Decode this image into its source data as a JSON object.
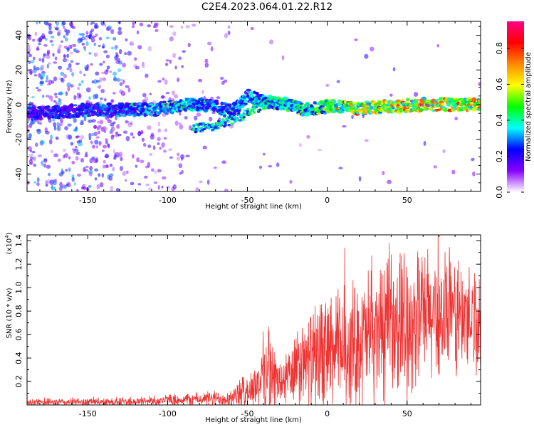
{
  "title": "C2E4.2023.064.01.22.R12",
  "chart_data": [
    {
      "type": "heatmap",
      "xlabel": "Height of straight line (km)",
      "ylabel": "Frequency (Hz)",
      "xlim": [
        -188,
        96
      ],
      "ylim": [
        -50,
        48
      ],
      "xticks": [
        -150,
        -100,
        -50,
        0,
        50
      ],
      "yticks": [
        -40,
        -20,
        0,
        20,
        40
      ],
      "colorbar": {
        "label": "Normalized spectral amplitude",
        "range": [
          0,
          0.95
        ],
        "ticks": [
          "0.0",
          "0.2",
          "0.4",
          "0.6",
          "0.8"
        ],
        "tick_values": [
          0,
          0.2,
          0.4,
          0.6,
          0.8
        ],
        "colors": [
          "#ffffff",
          "#8800ff",
          "#0000ff",
          "#00ffff",
          "#00ff00",
          "#ffff00",
          "#ff8800",
          "#ff0000",
          "#ff0088"
        ]
      },
      "ridge": [
        {
          "x": -180,
          "f": -5,
          "a": 0.3
        },
        {
          "x": -150,
          "f": -3,
          "a": 0.32
        },
        {
          "x": -130,
          "f": -3,
          "a": 0.38
        },
        {
          "x": -110,
          "f": -3,
          "a": 0.42
        },
        {
          "x": -90,
          "f": 0,
          "a": 0.45
        },
        {
          "x": -75,
          "f": 0,
          "a": 0.4
        },
        {
          "x": -60,
          "f": -4,
          "a": 0.42
        },
        {
          "x": -50,
          "f": 5,
          "a": 0.45
        },
        {
          "x": -40,
          "f": 2,
          "a": 0.5
        },
        {
          "x": -25,
          "f": 0,
          "a": 0.48
        },
        {
          "x": -15,
          "f": -3,
          "a": 0.55
        },
        {
          "x": 0,
          "f": -1,
          "a": 0.6
        },
        {
          "x": 20,
          "f": -2,
          "a": 0.75
        },
        {
          "x": 40,
          "f": -1,
          "a": 0.8
        },
        {
          "x": 60,
          "f": 0,
          "a": 0.85
        },
        {
          "x": 80,
          "f": 0,
          "a": 0.85
        },
        {
          "x": 95,
          "f": 0,
          "a": 0.8
        }
      ],
      "secondary_ridge": [
        {
          "x": -85,
          "f": -14,
          "a": 0.4
        },
        {
          "x": -70,
          "f": -12,
          "a": 0.42
        },
        {
          "x": -55,
          "f": -7,
          "a": 0.45
        },
        {
          "x": -45,
          "f": -2,
          "a": 0.45
        },
        {
          "x": -35,
          "f": 2,
          "a": 0.5
        },
        {
          "x": -25,
          "f": 2,
          "a": 0.45
        }
      ]
    },
    {
      "type": "line",
      "xlabel": "Height of straight line (km)",
      "ylabel": "SNR (10 * v/v)",
      "ymultiplier": "(x10",
      "ymultiplier_exp": "4",
      "ymultiplier_close": ")",
      "xlim": [
        -188,
        96
      ],
      "ylim": [
        0,
        1.45
      ],
      "xticks": [
        -150,
        -100,
        -50,
        0,
        50
      ],
      "yticks": [
        0.2,
        0.4,
        0.6,
        0.8,
        1.0,
        1.2,
        1.4
      ],
      "ytick_labels": [
        "0.2",
        "0.4",
        "0.6",
        "0.8",
        "1.0",
        "1.2",
        "1.4"
      ],
      "color": "#ee3333",
      "envelope": [
        {
          "x": -188,
          "base": 0.02,
          "amp": 0.03
        },
        {
          "x": -120,
          "base": 0.03,
          "amp": 0.04
        },
        {
          "x": -80,
          "base": 0.05,
          "amp": 0.06
        },
        {
          "x": -60,
          "base": 0.06,
          "amp": 0.08
        },
        {
          "x": -45,
          "base": 0.15,
          "amp": 0.2
        },
        {
          "x": -38,
          "base": 0.3,
          "amp": 0.4
        },
        {
          "x": -30,
          "base": 0.18,
          "amp": 0.22
        },
        {
          "x": -20,
          "base": 0.28,
          "amp": 0.35
        },
        {
          "x": -10,
          "base": 0.38,
          "amp": 0.45
        },
        {
          "x": 0,
          "base": 0.45,
          "amp": 0.5
        },
        {
          "x": 15,
          "base": 0.5,
          "amp": 0.55
        },
        {
          "x": 30,
          "base": 0.6,
          "amp": 0.6
        },
        {
          "x": 45,
          "base": 0.7,
          "amp": 0.65
        },
        {
          "x": 60,
          "base": 0.75,
          "amp": 0.6
        },
        {
          "x": 80,
          "base": 0.75,
          "amp": 0.55
        },
        {
          "x": 96,
          "base": 0.72,
          "amp": 0.5
        }
      ]
    }
  ]
}
